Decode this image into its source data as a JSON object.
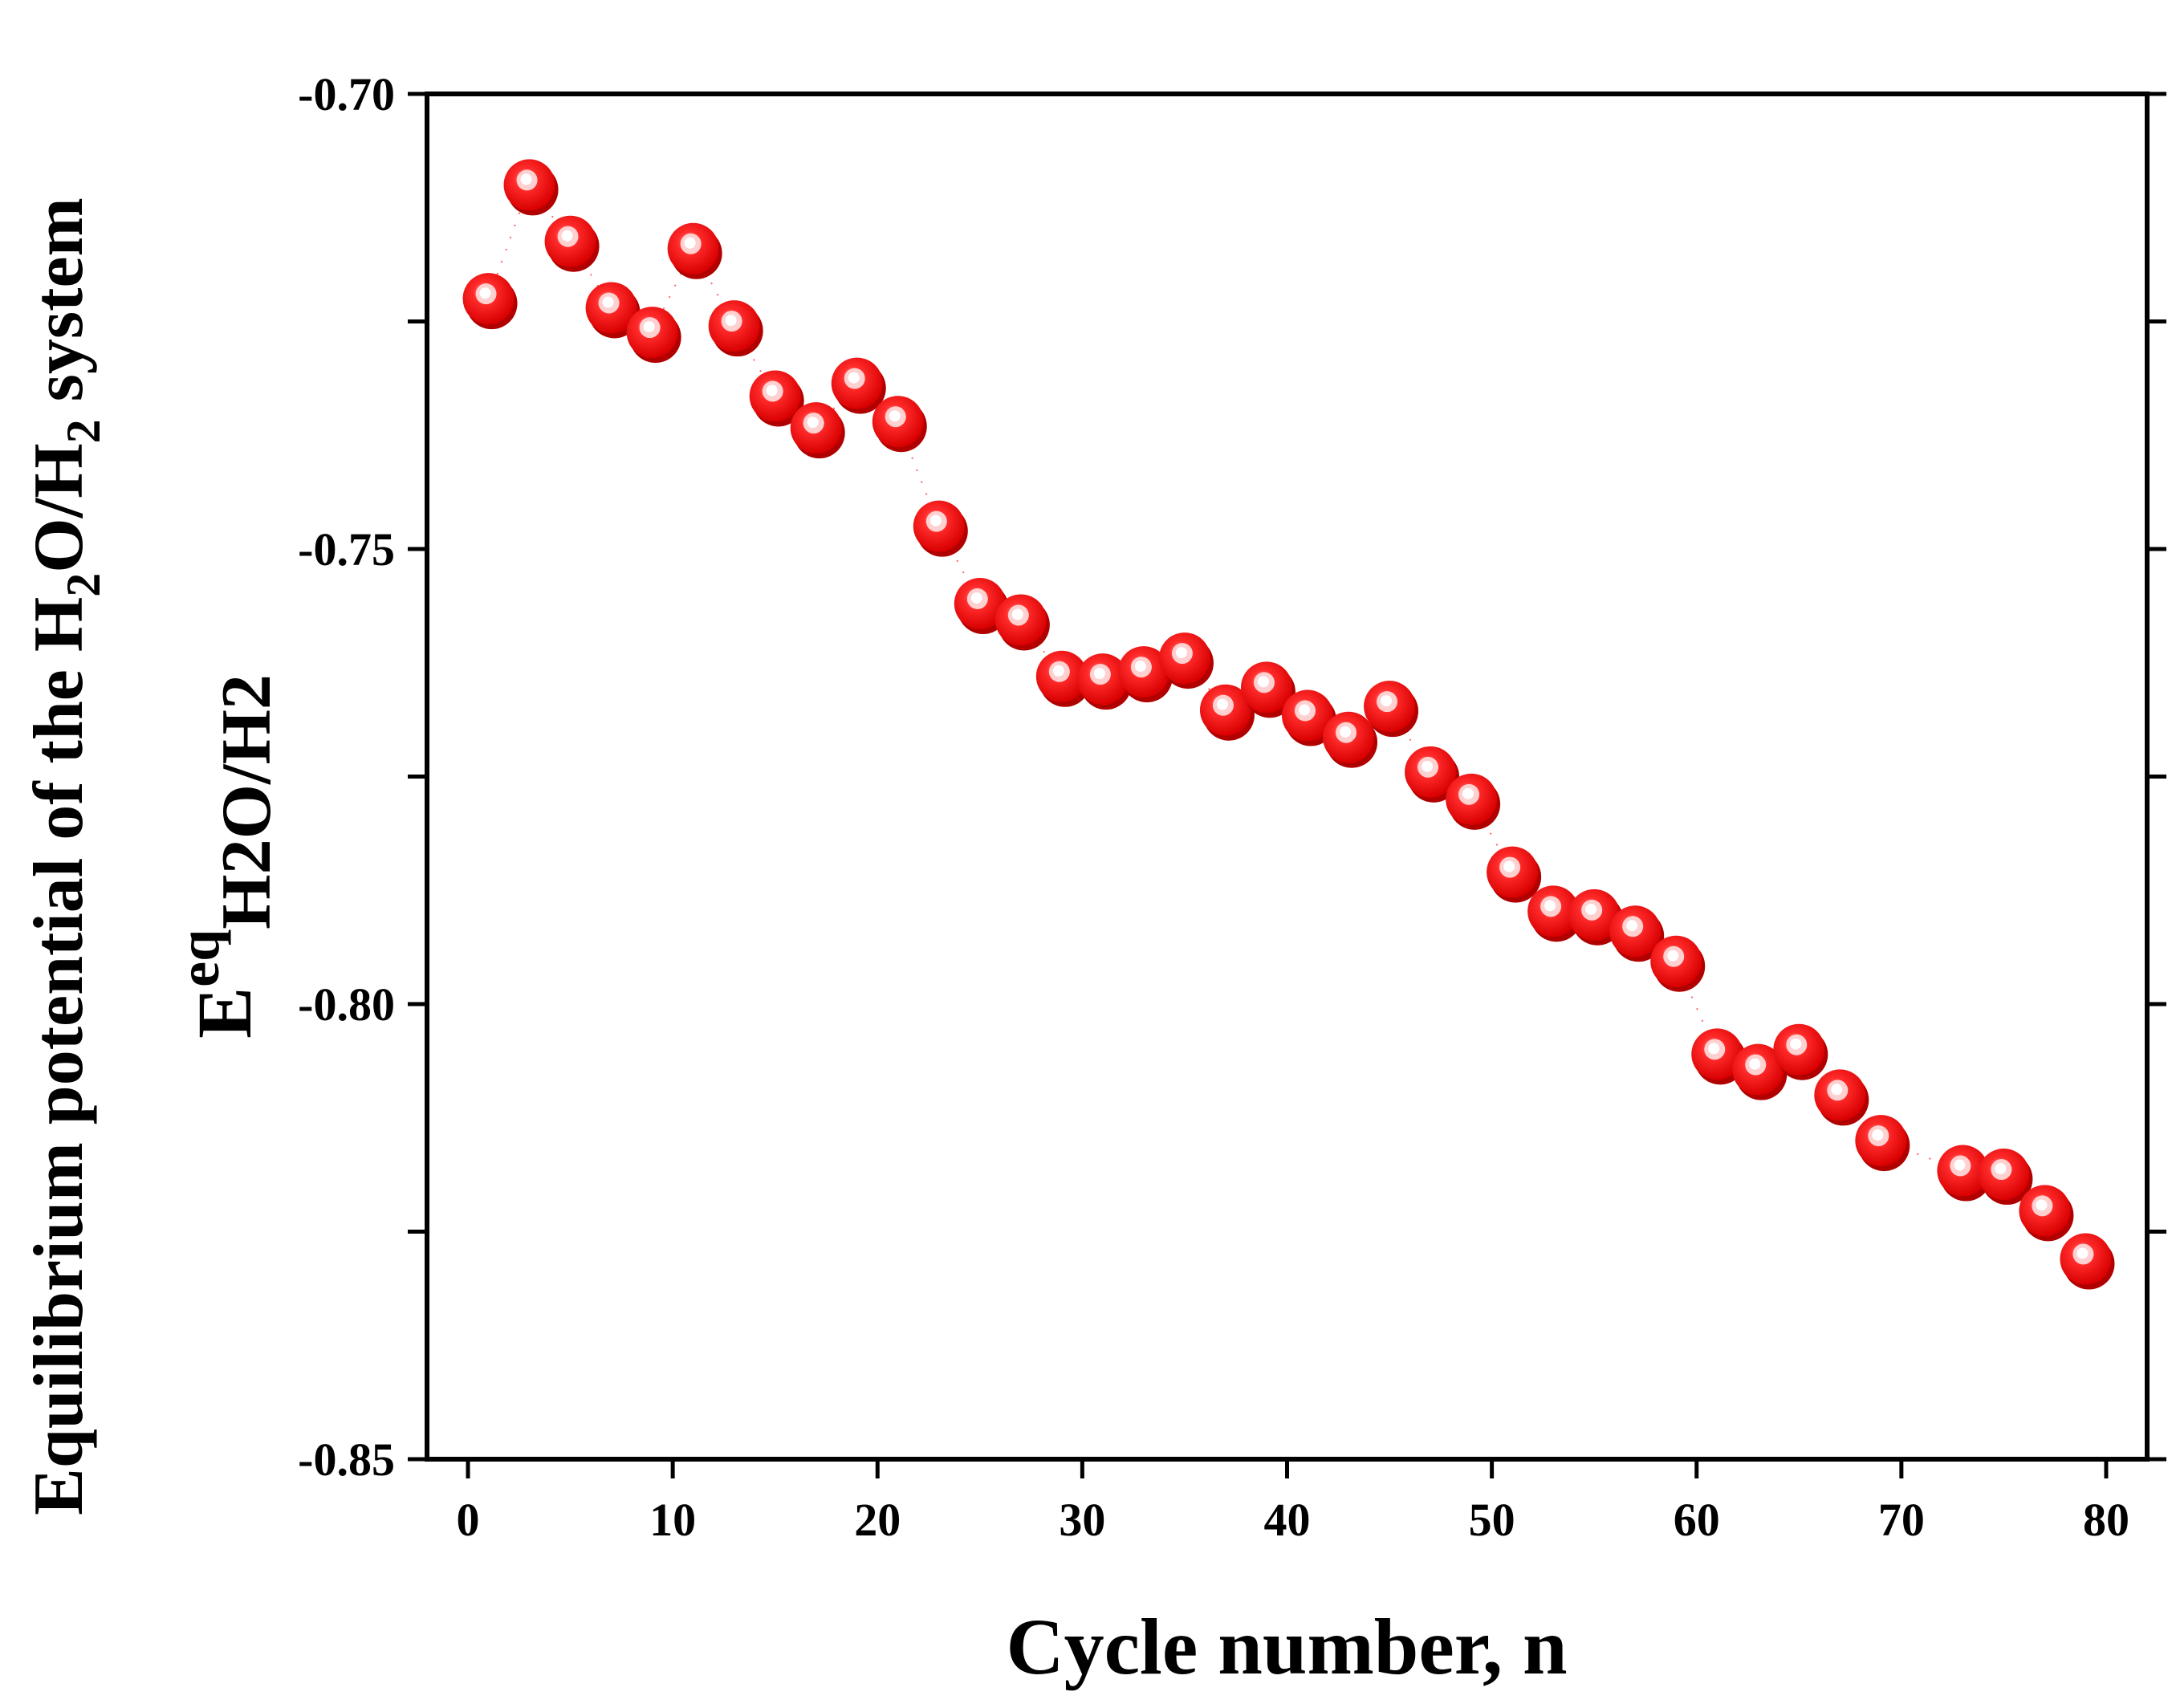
{
  "chart_data": {
    "type": "scatter",
    "title": "",
    "xlabel": "Cycle number, n",
    "ylabel": {
      "line1_prefix": "Equilibrium potential of the H",
      "line1_sub1": "2",
      "line1_mid": "O/H",
      "line1_sub2": "2",
      "line1_suffix": " system",
      "line2_main": "E",
      "line2_sup": "eq",
      "line2_sub": "H2O/H2"
    },
    "xlim": [
      -2,
      82
    ],
    "ylim": [
      -0.85,
      -0.7
    ],
    "xticks": [
      0,
      10,
      20,
      30,
      40,
      50,
      60,
      70,
      80
    ],
    "xtick_labels": [
      "0",
      "10",
      "20",
      "30",
      "40",
      "50",
      "60",
      "70",
      "80"
    ],
    "yticks": [
      -0.7,
      -0.75,
      -0.8,
      -0.85
    ],
    "ytick_labels": [
      "-0.70",
      "-0.75",
      "-0.80",
      "-0.85"
    ],
    "yminor_ticks": [
      -0.725,
      -0.775,
      -0.825
    ],
    "marker_color": "#ff0000",
    "series": [
      {
        "name": "E_eq H2O/H2",
        "points": [
          [
            1,
            -0.7225
          ],
          [
            3,
            -0.71
          ],
          [
            5,
            -0.7162
          ],
          [
            7,
            -0.7235
          ],
          [
            9,
            -0.7262
          ],
          [
            11,
            -0.717
          ],
          [
            13,
            -0.7255
          ],
          [
            15,
            -0.7332
          ],
          [
            17,
            -0.7367
          ],
          [
            19,
            -0.7318
          ],
          [
            21,
            -0.736
          ],
          [
            23,
            -0.7475
          ],
          [
            25,
            -0.756
          ],
          [
            27,
            -0.7578
          ],
          [
            29,
            -0.764
          ],
          [
            31,
            -0.7643
          ],
          [
            33,
            -0.7635
          ],
          [
            35,
            -0.762
          ],
          [
            37,
            -0.7677
          ],
          [
            39,
            -0.7652
          ],
          [
            41,
            -0.7683
          ],
          [
            43,
            -0.7707
          ],
          [
            45,
            -0.7673
          ],
          [
            47,
            -0.7745
          ],
          [
            49,
            -0.7775
          ],
          [
            51,
            -0.7855
          ],
          [
            53,
            -0.7898
          ],
          [
            55,
            -0.7902
          ],
          [
            57,
            -0.792
          ],
          [
            59,
            -0.7953
          ],
          [
            61,
            -0.8055
          ],
          [
            63,
            -0.8072
          ],
          [
            65,
            -0.805
          ],
          [
            67,
            -0.81
          ],
          [
            69,
            -0.815
          ],
          [
            73,
            -0.8183
          ],
          [
            75,
            -0.8187
          ],
          [
            77,
            -0.8227
          ],
          [
            79,
            -0.828
          ]
        ]
      }
    ]
  }
}
